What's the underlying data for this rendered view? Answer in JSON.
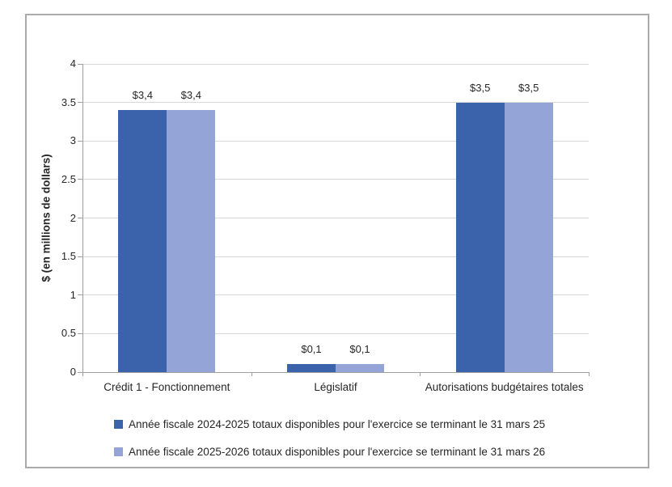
{
  "chart_data": {
    "type": "bar",
    "title": "",
    "categories": [
      "Crédit 1 - Fonctionnement",
      "Législatif",
      "Autorisations budgétaires totales"
    ],
    "series": [
      {
        "name": "Année fiscale 2024-2025 totaux disponibles pour l'exercice se terminant le 31 mars 25",
        "color": "#3b63ac",
        "values": [
          3.4,
          0.1,
          3.5
        ],
        "data_labels": [
          "$3,4",
          "$0,1",
          "$3,5"
        ]
      },
      {
        "name": "Année fiscale 2025-2026 totaux disponibles pour l'exercice se terminant le 31 mars 26",
        "color": "#95a4d7",
        "values": [
          3.4,
          0.1,
          3.5
        ],
        "data_labels": [
          "$3,4",
          "$0,1",
          "$3,5"
        ]
      }
    ],
    "xlabel": "",
    "ylabel": "$ (en millions de dollars)",
    "ylim": [
      0,
      4
    ],
    "ytick_interval": 0.5,
    "ytick_labels": [
      "0",
      "0.5",
      "1",
      "1.5",
      "2",
      "2.5",
      "3",
      "3.5",
      "4"
    ],
    "grid": true,
    "legend_position": "bottom",
    "styles": {
      "grid_color": "#d8d8d8",
      "axis_color": "#9e9e9e",
      "frame_border_color": "#ababab",
      "text_color": "#262626",
      "background": "#ffffff"
    }
  }
}
